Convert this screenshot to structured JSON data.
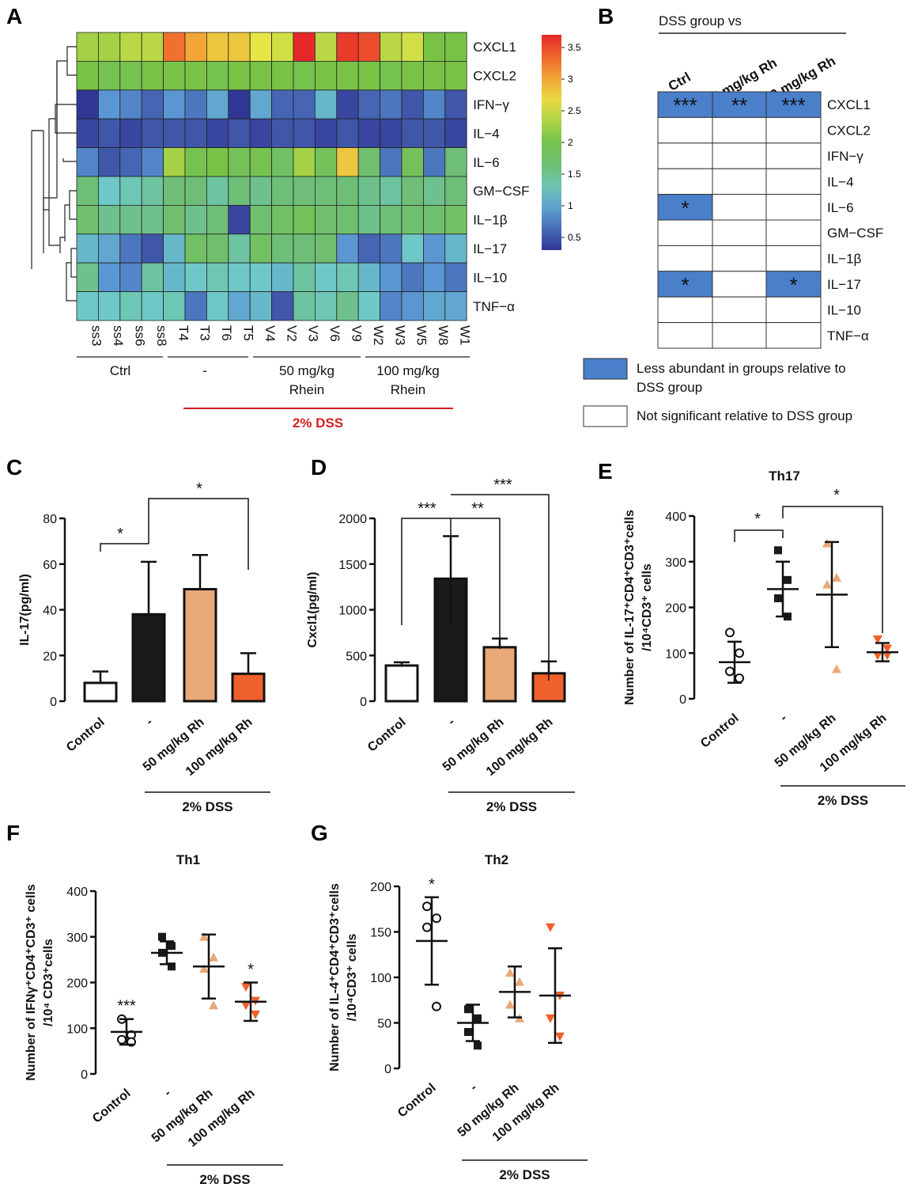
{
  "panels": {
    "A": "A",
    "B": "B",
    "C": "C",
    "D": "D",
    "E": "E",
    "F": "F",
    "G": "G"
  },
  "chart_data": [
    {
      "id": "A",
      "type": "heatmap",
      "rows": [
        "CXCL1",
        "CXCL2",
        "IFN−γ",
        "IL−4",
        "IL−6",
        "GM−CSF",
        "IL−1β",
        "IL−17",
        "IL−10",
        "TNF−α"
      ],
      "columns": [
        "ss3",
        "ss4",
        "ss6",
        "ss8",
        "T4",
        "T3",
        "T6",
        "T5",
        "V4",
        "V2",
        "V3",
        "V6",
        "V9",
        "W2",
        "W3",
        "W5",
        "W8",
        "W1"
      ],
      "values": [
        [
          2.3,
          2.3,
          2.4,
          2.4,
          3.3,
          3.0,
          2.8,
          2.8,
          2.6,
          2.5,
          3.7,
          2.4,
          3.6,
          3.5,
          2.4,
          2.5,
          2.1,
          2.1
        ],
        [
          2.1,
          2.0,
          2.0,
          2.1,
          2.1,
          2.1,
          2.0,
          2.1,
          2.1,
          2.1,
          2.0,
          2.1,
          2.1,
          2.1,
          2.0,
          2.1,
          2.1,
          2.1
        ],
        [
          0.3,
          0.9,
          0.8,
          0.6,
          0.9,
          0.7,
          1.0,
          0.3,
          1.0,
          0.6,
          0.6,
          1.1,
          0.4,
          0.6,
          0.7,
          0.5,
          0.8,
          0.5
        ],
        [
          0.4,
          0.5,
          0.4,
          0.5,
          0.5,
          0.5,
          0.4,
          0.5,
          0.4,
          0.5,
          0.5,
          0.4,
          0.5,
          0.4,
          0.4,
          0.5,
          0.5,
          0.4
        ],
        [
          0.8,
          0.5,
          0.6,
          0.8,
          2.3,
          2.0,
          2.1,
          1.9,
          2.0,
          1.8,
          2.3,
          1.9,
          2.8,
          1.7,
          0.7,
          1.9,
          0.7,
          1.6
        ],
        [
          1.6,
          1.2,
          1.3,
          1.4,
          1.6,
          1.6,
          1.4,
          1.6,
          1.5,
          1.6,
          1.6,
          1.6,
          1.6,
          1.5,
          1.4,
          1.6,
          1.5,
          1.6
        ],
        [
          1.7,
          1.5,
          1.5,
          1.5,
          1.7,
          1.5,
          1.6,
          0.4,
          1.7,
          1.8,
          1.9,
          1.7,
          1.7,
          1.5,
          1.6,
          1.7,
          1.7,
          1.8
        ],
        [
          1.1,
          1.0,
          0.7,
          0.5,
          1.1,
          1.8,
          1.7,
          1.4,
          1.8,
          1.6,
          1.6,
          1.7,
          0.9,
          0.6,
          0.7,
          1.2,
          0.9,
          1.1
        ],
        [
          1.5,
          0.9,
          0.8,
          1.4,
          1.1,
          1.2,
          1.3,
          1.2,
          1.2,
          1.1,
          1.4,
          1.2,
          1.3,
          1.1,
          0.9,
          0.7,
          0.9,
          0.7
        ],
        [
          1.2,
          1.2,
          1.3,
          1.2,
          1.3,
          0.7,
          1.2,
          1.0,
          1.1,
          0.5,
          1.4,
          1.3,
          1.5,
          1.2,
          0.8,
          0.9,
          1.0,
          1.0
        ]
      ],
      "colorbar_ticks": [
        "3.5",
        "3",
        "2.5",
        "2",
        "1.5",
        "1",
        "0.5"
      ],
      "groups": [
        {
          "label": "Ctrl",
          "sub": ""
        },
        {
          "label": "-",
          "sub": ""
        },
        {
          "label": "50 mg/kg",
          "sub": "Rhein"
        },
        {
          "label": "100 mg/kg",
          "sub": "Rhein"
        }
      ],
      "dss_label": "2% DSS"
    },
    {
      "id": "B",
      "type": "table",
      "header": "DSS group  vs",
      "columns": [
        "Ctrl",
        "50 mg/kg Rh",
        "100 mg/kg Rh"
      ],
      "rows": [
        "CXCL1",
        "CXCL2",
        "IFN−γ",
        "IL−4",
        "IL−6",
        "GM−CSF",
        "IL−1β",
        "IL−17",
        "IL−10",
        "TNF−α"
      ],
      "cells": [
        [
          "***",
          "**",
          "***"
        ],
        [
          "",
          "",
          ""
        ],
        [
          "",
          "",
          ""
        ],
        [
          "",
          "",
          ""
        ],
        [
          "*",
          "",
          ""
        ],
        [
          "",
          "",
          ""
        ],
        [
          "",
          "",
          ""
        ],
        [
          "*",
          "",
          "*"
        ],
        [
          "",
          "",
          ""
        ],
        [
          "",
          "",
          ""
        ]
      ],
      "legend": [
        {
          "color": "#4a7fca",
          "text1": "Less abundant in groups relative to",
          "text2": "DSS group"
        },
        {
          "color": "#ffffff",
          "text1": "Not significant relative to DSS group",
          "text2": ""
        }
      ]
    },
    {
      "id": "C",
      "type": "bar",
      "ylabel": "IL-17(pg/ml)",
      "ylim": [
        0,
        80
      ],
      "yticks": [
        "0",
        "20",
        "40",
        "60",
        "80"
      ],
      "categories": [
        "Control",
        "-",
        "50 mg/kg Rh",
        "100 mg/kg Rh"
      ],
      "values": [
        8,
        38,
        49,
        12
      ],
      "errors": [
        5,
        23,
        15,
        9
      ],
      "colors": [
        "#ffffff",
        "#1a1a1a",
        "#e8a878",
        "#f0602a"
      ],
      "brackets": [
        {
          "from": 0,
          "to": 1,
          "label": "*"
        },
        {
          "from": 1,
          "to": 3,
          "label": "*"
        }
      ],
      "group_label": "2% DSS"
    },
    {
      "id": "D",
      "type": "bar",
      "ylabel": "Cxcl1(pg/ml)",
      "ylim": [
        0,
        2000
      ],
      "yticks": [
        "0",
        "500",
        "1000",
        "1500",
        "2000"
      ],
      "categories": [
        "Control",
        "-",
        "50 mg/kg Rh",
        "100 mg/kg Rh"
      ],
      "values": [
        390,
        1340,
        590,
        305
      ],
      "errors": [
        35,
        465,
        95,
        130
      ],
      "colors": [
        "#ffffff",
        "#1a1a1a",
        "#e8a878",
        "#f0602a"
      ],
      "brackets": [
        {
          "from": 1,
          "to": 0,
          "label": "***"
        },
        {
          "from": 1,
          "to": 2,
          "label": "**"
        },
        {
          "from": 1,
          "to": 3,
          "label": "***"
        }
      ],
      "group_label": "2% DSS"
    },
    {
      "id": "E",
      "type": "scatter",
      "title": "Th17",
      "ylabel1": "Number of IL-17⁺CD4⁺CD3⁺cells",
      "ylabel2": "/10⁴CD3⁺ cells",
      "ylim": [
        0,
        400
      ],
      "yticks": [
        "0",
        "100",
        "200",
        "300",
        "400"
      ],
      "categories": [
        "Control",
        "-",
        "50 mg/kg Rh",
        "100 mg/kg Rh"
      ],
      "points": [
        [
          145,
          100,
          60,
          45
        ],
        [
          325,
          260,
          220,
          180
        ],
        [
          340,
          265,
          250,
          65
        ],
        [
          130,
          110,
          95,
          95
        ]
      ],
      "means": [
        80,
        240,
        228,
        102
      ],
      "sds": [
        45,
        60,
        115,
        20
      ],
      "brackets": [
        {
          "from": 0,
          "to": 1,
          "label": "*"
        },
        {
          "from": 1,
          "to": 3,
          "label": "*"
        }
      ],
      "group_label": "2% DSS"
    },
    {
      "id": "F",
      "type": "scatter",
      "title": "Th1",
      "ylabel1": "Number of IFNγ⁺CD4⁺CD3⁺ cells",
      "ylabel2": "/10⁴ CD3⁺cells",
      "ylim": [
        0,
        400
      ],
      "yticks": [
        "0",
        "100",
        "200",
        "300",
        "400"
      ],
      "categories": [
        "Control",
        "-",
        "50 mg/kg Rh",
        "100 mg/kg Rh"
      ],
      "points": [
        [
          120,
          85,
          75,
          70
        ],
        [
          300,
          280,
          265,
          235
        ],
        [
          300,
          255,
          230,
          150
        ],
        [
          190,
          160,
          150,
          130
        ]
      ],
      "means": [
        92,
        265,
        235,
        158
      ],
      "sds": [
        28,
        25,
        70,
        42
      ],
      "stars": [
        "***",
        "",
        "",
        "*"
      ],
      "group_label": "2% DSS"
    },
    {
      "id": "G",
      "type": "scatter",
      "title": "Th2",
      "ylabel1": "Number of IL-4⁺CD4⁺CD3⁺cells",
      "ylabel2": "/10⁴CD3⁺ cells",
      "ylim": [
        0,
        200
      ],
      "yticks": [
        "0",
        "50",
        "100",
        "150",
        "200"
      ],
      "categories": [
        "Control",
        "-",
        "50 mg/kg Rh",
        "100 mg/kg Rh"
      ],
      "points": [
        [
          178,
          165,
          155,
          68
        ],
        [
          65,
          55,
          40,
          25
        ],
        [
          105,
          95,
          70,
          55
        ],
        [
          155,
          80,
          55,
          35
        ]
      ],
      "means": [
        140,
        50,
        84,
        80
      ],
      "sds": [
        48,
        20,
        28,
        52
      ],
      "stars": [
        "*",
        "",
        "",
        ""
      ],
      "group_label": "2% DSS"
    }
  ]
}
